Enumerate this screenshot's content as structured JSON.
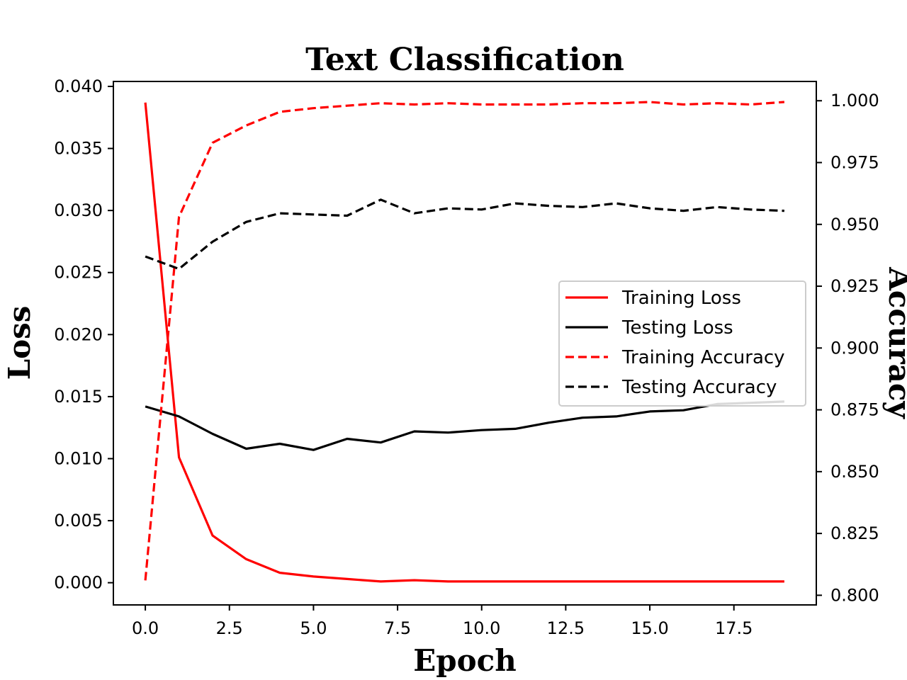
{
  "chart_data": {
    "type": "line",
    "title": "Text Classification",
    "xlabel": "Epoch",
    "ylabel_left": "Loss",
    "ylabel_right": "Accuracy",
    "xlim": [
      -0.95,
      19.95
    ],
    "ylim_left": [
      -0.00179,
      0.0404
    ],
    "ylim_right": [
      0.7961,
      1.0078
    ],
    "x_ticks": [
      0,
      2.5,
      5,
      7.5,
      10,
      12.5,
      15,
      17.5
    ],
    "x_tick_labels": [
      "0.0",
      "2.5",
      "5.0",
      "7.5",
      "10.0",
      "12.5",
      "15.0",
      "17.5"
    ],
    "y_left_ticks": [
      0,
      0.005,
      0.01,
      0.015,
      0.02,
      0.025,
      0.03,
      0.035,
      0.04
    ],
    "y_left_tick_labels": [
      "0.000",
      "0.005",
      "0.010",
      "0.015",
      "0.020",
      "0.025",
      "0.030",
      "0.035",
      "0.040"
    ],
    "y_right_ticks": [
      0.8,
      0.825,
      0.85,
      0.875,
      0.9,
      0.925,
      0.95,
      0.975,
      1.0
    ],
    "y_right_tick_labels": [
      "0.800",
      "0.825",
      "0.850",
      "0.875",
      "0.900",
      "0.925",
      "0.950",
      "0.975",
      "1.000"
    ],
    "grid": false,
    "legend_position": "center-right",
    "x": [
      0,
      1,
      2,
      3,
      4,
      5,
      6,
      7,
      8,
      9,
      10,
      11,
      12,
      13,
      14,
      15,
      16,
      17,
      18,
      19
    ],
    "series": [
      {
        "name": "Training Loss",
        "axis": "left",
        "color": "#ff0000",
        "dash": "solid",
        "values": [
          0.0387,
          0.0101,
          0.0038,
          0.0019,
          0.0008,
          0.0005,
          0.0003,
          0.0001,
          0.0002,
          0.0001,
          0.0001,
          0.0001,
          0.0001,
          0.0001,
          0.0001,
          0.0001,
          0.0001,
          0.0001,
          0.0001,
          0.0001
        ]
      },
      {
        "name": "Testing Loss",
        "axis": "left",
        "color": "#000000",
        "dash": "solid",
        "values": [
          0.0142,
          0.0134,
          0.012,
          0.0108,
          0.0112,
          0.0107,
          0.0116,
          0.0113,
          0.0122,
          0.0121,
          0.0123,
          0.0124,
          0.0129,
          0.0133,
          0.0134,
          0.0138,
          0.0139,
          0.0144,
          0.0145,
          0.0146
        ]
      },
      {
        "name": "Training Accuracy",
        "axis": "right",
        "color": "#ff0000",
        "dash": "dashed",
        "values": [
          0.806,
          0.953,
          0.983,
          0.99,
          0.9955,
          0.997,
          0.998,
          0.999,
          0.9985,
          0.999,
          0.9985,
          0.9985,
          0.9985,
          0.999,
          0.999,
          0.9995,
          0.9985,
          0.999,
          0.9985,
          0.9995
        ]
      },
      {
        "name": "Testing Accuracy",
        "axis": "right",
        "color": "#000000",
        "dash": "dashed",
        "values": [
          0.937,
          0.932,
          0.943,
          0.951,
          0.9545,
          0.954,
          0.9535,
          0.96,
          0.9545,
          0.9565,
          0.956,
          0.9585,
          0.9575,
          0.957,
          0.9585,
          0.9565,
          0.9555,
          0.957,
          0.956,
          0.9555
        ]
      }
    ]
  }
}
